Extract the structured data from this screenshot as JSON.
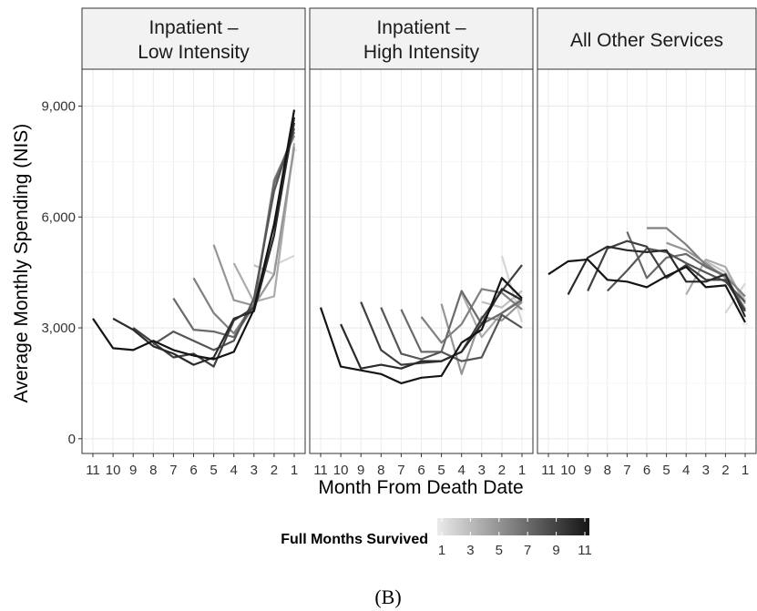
{
  "chart_data": {
    "type": "line",
    "ylabel": "Average Monthly Spending (NIS)",
    "xlabel": "Month From Death Date",
    "caption": "(B)",
    "ylim": [
      -400,
      10000
    ],
    "yticks": [
      0,
      3000,
      6000,
      9000
    ],
    "ytick_labels": [
      "0",
      "3,000",
      "6,000",
      "9,000"
    ],
    "xticks": [
      11,
      10,
      9,
      8,
      7,
      6,
      5,
      4,
      3,
      2,
      1
    ],
    "xtick_labels": [
      "11",
      "10",
      "9",
      "8",
      "7",
      "6",
      "5",
      "4",
      "3",
      "2",
      "1"
    ],
    "grid": true,
    "legend": {
      "title": "Full Months Survived",
      "type": "colorbar",
      "placement": "bottom",
      "ticks": [
        1,
        3,
        5,
        7,
        9,
        11
      ],
      "tick_labels": [
        "1",
        "3",
        "5",
        "7",
        "9",
        "11"
      ],
      "colors": {
        "low": "#ebebeb",
        "high": "#141414"
      }
    },
    "panels": [
      {
        "title_lines": [
          "Inpatient –",
          "Low Intensity"
        ],
        "series": [
          {
            "group": 11,
            "x": [
              11,
              10,
              9,
              8,
              7,
              6,
              5,
              4,
              3,
              2,
              1
            ],
            "y": [
              3250,
              2450,
              2400,
              2650,
              2400,
              2250,
              2150,
              2350,
              3500,
              5800,
              8900
            ]
          },
          {
            "group": 10,
            "x": [
              10,
              9,
              8,
              7,
              6,
              5,
              4,
              3,
              2,
              1
            ],
            "y": [
              3250,
              2950,
              2500,
              2300,
              2000,
              2200,
              3250,
              3450,
              5500,
              8700
            ]
          },
          {
            "group": 9,
            "x": [
              9,
              8,
              7,
              6,
              5,
              4,
              3,
              2,
              1
            ],
            "y": [
              3000,
              2600,
              2200,
              2300,
              1950,
              3200,
              3550,
              5800,
              8550
            ]
          },
          {
            "group": 8,
            "x": [
              8,
              7,
              6,
              5,
              4,
              3,
              2,
              1
            ],
            "y": [
              2550,
              2900,
              2650,
              2400,
              2650,
              3800,
              6700,
              8400
            ]
          },
          {
            "group": 7,
            "x": [
              7,
              6,
              5,
              4,
              3,
              2,
              1
            ],
            "y": [
              3800,
              2950,
              2900,
              2750,
              3600,
              6900,
              8300
            ]
          },
          {
            "group": 6,
            "x": [
              6,
              5,
              4,
              3,
              2,
              1
            ],
            "y": [
              4350,
              3400,
              2850,
              3650,
              7000,
              8200
            ]
          },
          {
            "group": 5,
            "x": [
              5,
              4,
              3,
              2,
              1
            ],
            "y": [
              5250,
              3750,
              3600,
              4450,
              7900
            ]
          },
          {
            "group": 4,
            "x": [
              4,
              3,
              2,
              1
            ],
            "y": [
              4750,
              3700,
              3850,
              8000
            ]
          },
          {
            "group": 3,
            "x": [
              3,
              2,
              1
            ],
            "y": [
              4700,
              4450,
              7850
            ]
          },
          {
            "group": 2,
            "x": [
              2,
              1
            ],
            "y": [
              4700,
              4950
            ]
          },
          {
            "group": 1,
            "x": [
              1
            ],
            "y": [
              7800
            ]
          }
        ]
      },
      {
        "title_lines": [
          "Inpatient –",
          "High Intensity"
        ],
        "series": [
          {
            "group": 11,
            "x": [
              11,
              10,
              9,
              8,
              7,
              6,
              5,
              4,
              3,
              2,
              1
            ],
            "y": [
              3550,
              1950,
              1850,
              1750,
              1500,
              1650,
              1700,
              2600,
              2950,
              4350,
              3800
            ]
          },
          {
            "group": 10,
            "x": [
              10,
              9,
              8,
              7,
              6,
              5,
              4,
              3,
              2,
              1
            ],
            "y": [
              3100,
              1900,
              2000,
              1900,
              2100,
              2100,
              2350,
              3100,
              4050,
              3750
            ]
          },
          {
            "group": 9,
            "x": [
              9,
              8,
              7,
              6,
              5,
              4,
              3,
              2,
              1
            ],
            "y": [
              3700,
              2400,
              2000,
              2050,
              2100,
              2350,
              3250,
              4000,
              4700
            ]
          },
          {
            "group": 8,
            "x": [
              8,
              7,
              6,
              5,
              4,
              3,
              2,
              1
            ],
            "y": [
              3550,
              2300,
              2150,
              2350,
              2100,
              2200,
              3350,
              3000
            ]
          },
          {
            "group": 7,
            "x": [
              7,
              6,
              5,
              4,
              3,
              2,
              1
            ],
            "y": [
              3500,
              2350,
              2350,
              4000,
              3100,
              3400,
              3750
            ]
          },
          {
            "group": 6,
            "x": [
              6,
              5,
              4,
              3,
              2,
              1
            ],
            "y": [
              3300,
              2600,
              3100,
              4050,
              3950,
              3500
            ]
          },
          {
            "group": 5,
            "x": [
              5,
              4,
              3,
              2,
              1
            ],
            "y": [
              3650,
              1750,
              3300,
              3200,
              3700
            ]
          },
          {
            "group": 4,
            "x": [
              4,
              3,
              2,
              1
            ],
            "y": [
              3950,
              2750,
              3400,
              3800
            ]
          },
          {
            "group": 3,
            "x": [
              3,
              2,
              1
            ],
            "y": [
              3700,
              3550,
              4000
            ]
          },
          {
            "group": 2,
            "x": [
              2,
              1
            ],
            "y": [
              4950,
              3150
            ]
          },
          {
            "group": 1,
            "x": [
              1
            ],
            "y": [
              3500
            ]
          }
        ]
      },
      {
        "title_lines": [
          "All Other Services"
        ],
        "series": [
          {
            "group": 11,
            "x": [
              11,
              10,
              9,
              8,
              7,
              6,
              5,
              4,
              3,
              2,
              1
            ],
            "y": [
              4450,
              4800,
              4850,
              4300,
              4250,
              4100,
              4400,
              4650,
              4100,
              4150,
              3150
            ]
          },
          {
            "group": 10,
            "x": [
              10,
              9,
              8,
              7,
              6,
              5,
              4,
              3,
              2,
              1
            ],
            "y": [
              3900,
              4900,
              5200,
              5100,
              5050,
              5100,
              4250,
              4250,
              4450,
              3300
            ]
          },
          {
            "group": 9,
            "x": [
              9,
              8,
              7,
              6,
              5,
              4,
              3,
              2,
              1
            ],
            "y": [
              4000,
              5150,
              5350,
              5200,
              4350,
              4700,
              4300,
              4300,
              3450
            ]
          },
          {
            "group": 8,
            "x": [
              8,
              7,
              6,
              5,
              4,
              3,
              2,
              1
            ],
            "y": [
              4000,
              4550,
              5150,
              5050,
              4750,
              4500,
              4250,
              3700
            ]
          },
          {
            "group": 7,
            "x": [
              7,
              6,
              5,
              4,
              3,
              2,
              1
            ],
            "y": [
              5600,
              4350,
              4900,
              5000,
              4650,
              4400,
              3500
            ]
          },
          {
            "group": 6,
            "x": [
              6,
              5,
              4,
              3,
              2,
              1
            ],
            "y": [
              5700,
              5700,
              5250,
              4700,
              4400,
              3850
            ]
          },
          {
            "group": 5,
            "x": [
              5,
              4,
              3,
              2,
              1
            ],
            "y": [
              5300,
              5100,
              4750,
              4350,
              3500
            ]
          },
          {
            "group": 4,
            "x": [
              4,
              3,
              2,
              1
            ],
            "y": [
              3900,
              4850,
              4650,
              3650
            ]
          },
          {
            "group": 3,
            "x": [
              3,
              2,
              1
            ],
            "y": [
              4800,
              4500,
              3750
            ]
          },
          {
            "group": 2,
            "x": [
              2,
              1
            ],
            "y": [
              3400,
              4200
            ]
          },
          {
            "group": 1,
            "x": [
              1
            ],
            "y": [
              3100
            ]
          }
        ]
      }
    ]
  }
}
